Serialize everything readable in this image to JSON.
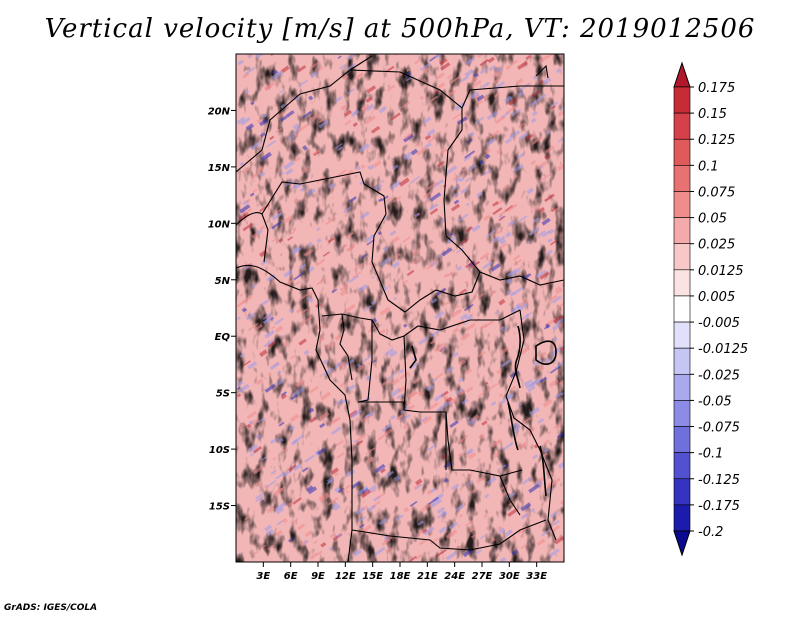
{
  "title": "Vertical velocity [m/s] at 500hPa, VT: 2019012506",
  "credit": "GrADS: IGES/COLA",
  "map": {
    "lon_range": [
      0,
      36
    ],
    "lat_range": [
      -20,
      25
    ],
    "y_ticks": [
      {
        "lat": 20,
        "label": "20N"
      },
      {
        "lat": 15,
        "label": "15N"
      },
      {
        "lat": 10,
        "label": "10N"
      },
      {
        "lat": 5,
        "label": "5N"
      },
      {
        "lat": 0,
        "label": "EQ"
      },
      {
        "lat": -5,
        "label": "5S"
      },
      {
        "lat": -10,
        "label": "10S"
      },
      {
        "lat": -15,
        "label": "15S"
      }
    ],
    "x_ticks": [
      {
        "lon": 3,
        "label": "3E"
      },
      {
        "lon": 6,
        "label": "6E"
      },
      {
        "lon": 9,
        "label": "9E"
      },
      {
        "lon": 12,
        "label": "12E"
      },
      {
        "lon": 15,
        "label": "15E"
      },
      {
        "lon": 18,
        "label": "18E"
      },
      {
        "lon": 21,
        "label": "21E"
      },
      {
        "lon": 24,
        "label": "24E"
      },
      {
        "lon": 27,
        "label": "27E"
      },
      {
        "lon": 30,
        "label": "30E"
      },
      {
        "lon": 33,
        "label": "33E"
      }
    ]
  },
  "colorbar": {
    "labels": [
      "0.175",
      "0.15",
      "0.125",
      "0.1",
      "0.075",
      "0.05",
      "0.025",
      "0.0125",
      "0.005",
      "-0.005",
      "-0.0125",
      "-0.025",
      "-0.05",
      "-0.075",
      "-0.1",
      "-0.125",
      "-0.175",
      "-0.2"
    ],
    "colors": [
      "#b2182b",
      "#c72b35",
      "#d6404a",
      "#e05a5a",
      "#e87272",
      "#ef8d8d",
      "#f4aaaa",
      "#f8c8c8",
      "#fce3e3",
      "#ffffff",
      "#e0e0fa",
      "#c6c6f4",
      "#a9a9ee",
      "#8c8ce6",
      "#7070dc",
      "#5252d0",
      "#3434c0",
      "#1c1cac",
      "#0a0a90"
    ]
  },
  "icons": {
    "colorbar_top": "triangle-up-icon",
    "colorbar_bottom": "triangle-down-icon"
  }
}
